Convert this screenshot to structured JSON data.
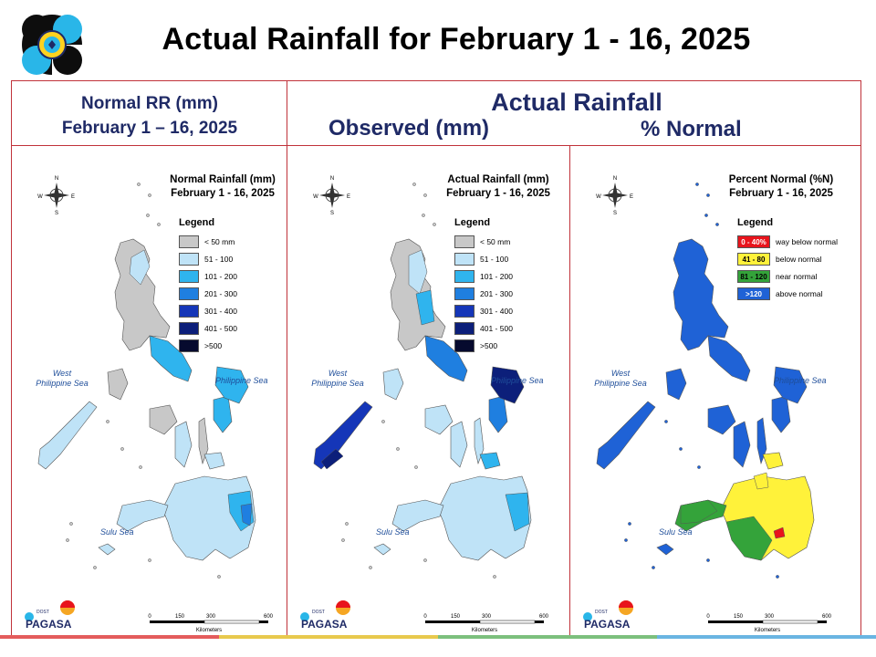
{
  "slide_title": "Actual Rainfall for February 1 - 16, 2025",
  "headers": {
    "normal_line1": "Normal RR (mm)",
    "normal_line2": "February 1 – 16, 2025",
    "actual": "Actual Rainfall",
    "observed": "Observed (mm)",
    "percent": "% Normal"
  },
  "panels": [
    {
      "id": "normal",
      "map_title_1": "Normal Rainfall (mm)",
      "map_title_2": "February 1 - 16, 2025",
      "legend_title": "Legend",
      "legend": [
        {
          "label": "< 50 mm",
          "color": "#c8c8c8"
        },
        {
          "label": "51 - 100",
          "color": "#bfe3f7"
        },
        {
          "label": "101 - 200",
          "color": "#2fb4ee"
        },
        {
          "label": "201 - 300",
          "color": "#1f7fe0"
        },
        {
          "label": "301 - 400",
          "color": "#1536b8"
        },
        {
          "label": "401 - 500",
          "color": "#0c1f7a"
        },
        {
          "label": ">500",
          "color": "#060a2e"
        }
      ],
      "sea_west": "West\nPhilippine Sea",
      "sea_east": "Philippine Sea",
      "sea_sulu": "Sulu Sea"
    },
    {
      "id": "observed",
      "map_title_1": "Actual Rainfall (mm)",
      "map_title_2": "February 1 - 16, 2025",
      "legend_title": "Legend",
      "legend": [
        {
          "label": "< 50 mm",
          "color": "#c8c8c8"
        },
        {
          "label": "51 - 100",
          "color": "#bfe3f7"
        },
        {
          "label": "101 - 200",
          "color": "#2fb4ee"
        },
        {
          "label": "201 - 300",
          "color": "#1f7fe0"
        },
        {
          "label": "301 - 400",
          "color": "#1536b8"
        },
        {
          "label": "401 - 500",
          "color": "#0c1f7a"
        },
        {
          "label": ">500",
          "color": "#060a2e"
        }
      ],
      "sea_west": "West\nPhilippine Sea",
      "sea_east": "Philippine Sea",
      "sea_sulu": "Sulu Sea"
    },
    {
      "id": "percent",
      "map_title_1": "Percent Normal (%N)",
      "map_title_2": "February 1 - 16, 2025",
      "legend_title": "Legend",
      "legend": [
        {
          "swatch_text": "0 - 40%",
          "label": "way below normal",
          "color": "#e8141c",
          "text_color": "#ffffff"
        },
        {
          "swatch_text": "41 - 80",
          "label": "below normal",
          "color": "#fff23a",
          "text_color": "#000000"
        },
        {
          "swatch_text": "81 - 120",
          "label": "near normal",
          "color": "#34a33a",
          "text_color": "#000000"
        },
        {
          "swatch_text": ">120",
          "label": "above normal",
          "color": "#1f62d6",
          "text_color": "#ffffff"
        }
      ],
      "sea_west": "West\nPhilippine Sea",
      "sea_east": "Philippine Sea",
      "sea_sulu": "Sulu Sea"
    }
  ],
  "scalebar": {
    "ticks": [
      "0",
      "150",
      "300",
      "600"
    ],
    "unit": "Kilometers"
  },
  "compass": {
    "n": "N",
    "s": "S",
    "e": "E",
    "w": "W"
  },
  "pagasa_logo": {
    "small": "DOST",
    "name": "PAGASA"
  },
  "bottom_strip_colors": [
    "#e45c5c",
    "#e8c94d",
    "#7cc07d",
    "#6ab5e2"
  ]
}
